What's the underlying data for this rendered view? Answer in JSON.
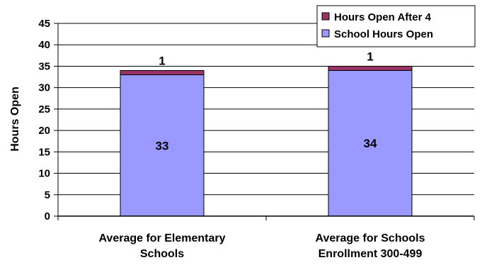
{
  "chart_data": {
    "type": "bar",
    "stacked": true,
    "categories": [
      [
        "Average for Elementary",
        "Schools"
      ],
      [
        "Average for Schools",
        "Enrollment 300-499"
      ]
    ],
    "series": [
      {
        "name": "School Hours Open",
        "values": [
          33,
          34
        ],
        "color": "#9999FF"
      },
      {
        "name": "Hours Open After 4",
        "values": [
          1,
          1
        ],
        "color": "#993366"
      }
    ],
    "ylabel": "Hours Open",
    "ylim": [
      0,
      45
    ],
    "yticks": [
      0,
      5,
      10,
      15,
      20,
      25,
      30,
      35,
      40,
      45
    ],
    "grid": true,
    "legend": "top-right",
    "legend_order": [
      "Hours Open After 4",
      "School Hours Open"
    ]
  }
}
